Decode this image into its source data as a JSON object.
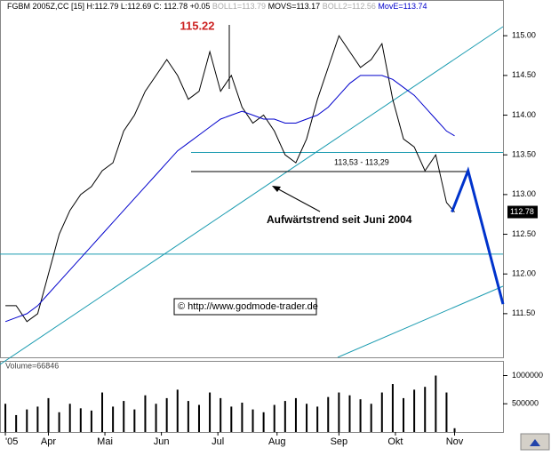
{
  "chart_data": [
    {
      "type": "line",
      "header": [
        "FGBM 2005Z,CC [15] H:112.79 L:112.69 C: 112.78 +0.05",
        "BOLL1=113.79",
        "MOVS=113.17",
        "BOLL2=112.56",
        "MovE=113.74"
      ],
      "x": [
        0,
        4,
        8,
        12,
        16,
        20,
        24,
        28,
        32,
        36,
        40,
        44,
        48,
        52,
        56,
        60,
        64,
        68,
        72,
        76,
        80,
        84,
        88,
        92,
        96,
        100,
        104,
        108,
        112,
        116,
        120,
        124,
        128,
        132,
        136,
        140,
        144,
        148,
        152,
        156,
        160,
        164,
        167
      ],
      "series": [
        {
          "name": "FGBM",
          "color": "#000000",
          "values": [
            111.6,
            111.6,
            111.4,
            111.5,
            112.0,
            112.5,
            112.8,
            113.0,
            113.1,
            113.3,
            113.4,
            113.8,
            114.0,
            114.3,
            114.5,
            114.7,
            114.5,
            114.2,
            114.3,
            114.8,
            114.3,
            114.5,
            114.1,
            113.9,
            114.0,
            113.8,
            113.5,
            113.4,
            113.7,
            114.2,
            114.6,
            115.0,
            114.8,
            114.6,
            114.7,
            114.9,
            114.2,
            113.7,
            113.6,
            113.3,
            113.5,
            112.9,
            112.78
          ]
        },
        {
          "name": "MovE",
          "color": "#0000cc",
          "values": [
            111.4,
            111.45,
            111.5,
            111.6,
            111.75,
            111.9,
            112.05,
            112.2,
            112.35,
            112.5,
            112.65,
            112.8,
            112.95,
            113.1,
            113.25,
            113.4,
            113.55,
            113.65,
            113.75,
            113.85,
            113.95,
            114.0,
            114.05,
            114.0,
            113.95,
            113.95,
            113.9,
            113.9,
            113.95,
            114.0,
            114.1,
            114.25,
            114.4,
            114.5,
            114.5,
            114.5,
            114.45,
            114.35,
            114.25,
            114.1,
            113.95,
            113.8,
            113.74
          ]
        }
      ],
      "forecast": {
        "color": "#0033cc",
        "x": [
          166,
          172,
          185
        ],
        "values": [
          112.78,
          113.3,
          111.62
        ]
      },
      "levels": [
        {
          "value": 113.53,
          "color": "#1a9bb0"
        },
        {
          "value": 113.29,
          "color": "#000000"
        },
        {
          "value": 112.25,
          "color": "#1a9bb0"
        }
      ],
      "level_label": "113,53 - 113,29",
      "peak": 115.22,
      "trend_label": "Aufwärtstrend seit Juni 2004",
      "source": "© http://www.godmode-trader.de",
      "last_price": {
        "value": 112.78,
        "label": "112.78"
      },
      "xlim": [
        -2,
        185
      ],
      "ylim": [
        110.95,
        115.45
      ],
      "yticks": [
        {
          "value": 111.5,
          "label": "111.50"
        },
        {
          "value": 112,
          "label": "112.00"
        },
        {
          "value": 112.5,
          "label": "112.50"
        },
        {
          "value": 113,
          "label": "113.00"
        },
        {
          "value": 113.5,
          "label": "113.50"
        },
        {
          "value": 114,
          "label": "114.00"
        },
        {
          "value": 114.5,
          "label": "114.50"
        },
        {
          "value": 115,
          "label": "115.00"
        }
      ]
    },
    {
      "type": "bar",
      "title": "Volume=66846",
      "color": "#000000",
      "x": [
        0,
        4,
        8,
        12,
        16,
        20,
        24,
        28,
        32,
        36,
        40,
        44,
        48,
        52,
        56,
        60,
        64,
        68,
        72,
        76,
        80,
        84,
        88,
        92,
        96,
        100,
        104,
        108,
        112,
        116,
        120,
        124,
        128,
        132,
        136,
        140,
        144,
        148,
        152,
        156,
        160,
        164,
        167
      ],
      "values": [
        500000,
        300000,
        400000,
        450000,
        600000,
        350000,
        500000,
        420000,
        380000,
        700000,
        450000,
        550000,
        400000,
        650000,
        500000,
        600000,
        750000,
        550000,
        480000,
        700000,
        600000,
        450000,
        520000,
        400000,
        350000,
        480000,
        550000,
        600000,
        500000,
        450000,
        620000,
        700000,
        650000,
        580000,
        500000,
        700000,
        850000,
        600000,
        750000,
        800000,
        1000000,
        700000,
        66846
      ],
      "xlim": [
        -2,
        185
      ],
      "ylim": [
        0,
        1260000
      ],
      "yticks": [
        500000,
        1000000
      ],
      "xticks": [
        {
          "value": 0,
          "label": "'05"
        },
        {
          "value": 16,
          "label": "Apr"
        },
        {
          "value": 37,
          "label": "Mai"
        },
        {
          "value": 58,
          "label": "Jun"
        },
        {
          "value": 79,
          "label": "Jul"
        },
        {
          "value": 101,
          "label": "Aug"
        },
        {
          "value": 124,
          "label": "Sep"
        },
        {
          "value": 145,
          "label": "Okt"
        },
        {
          "value": 167,
          "label": "Nov"
        }
      ]
    }
  ]
}
